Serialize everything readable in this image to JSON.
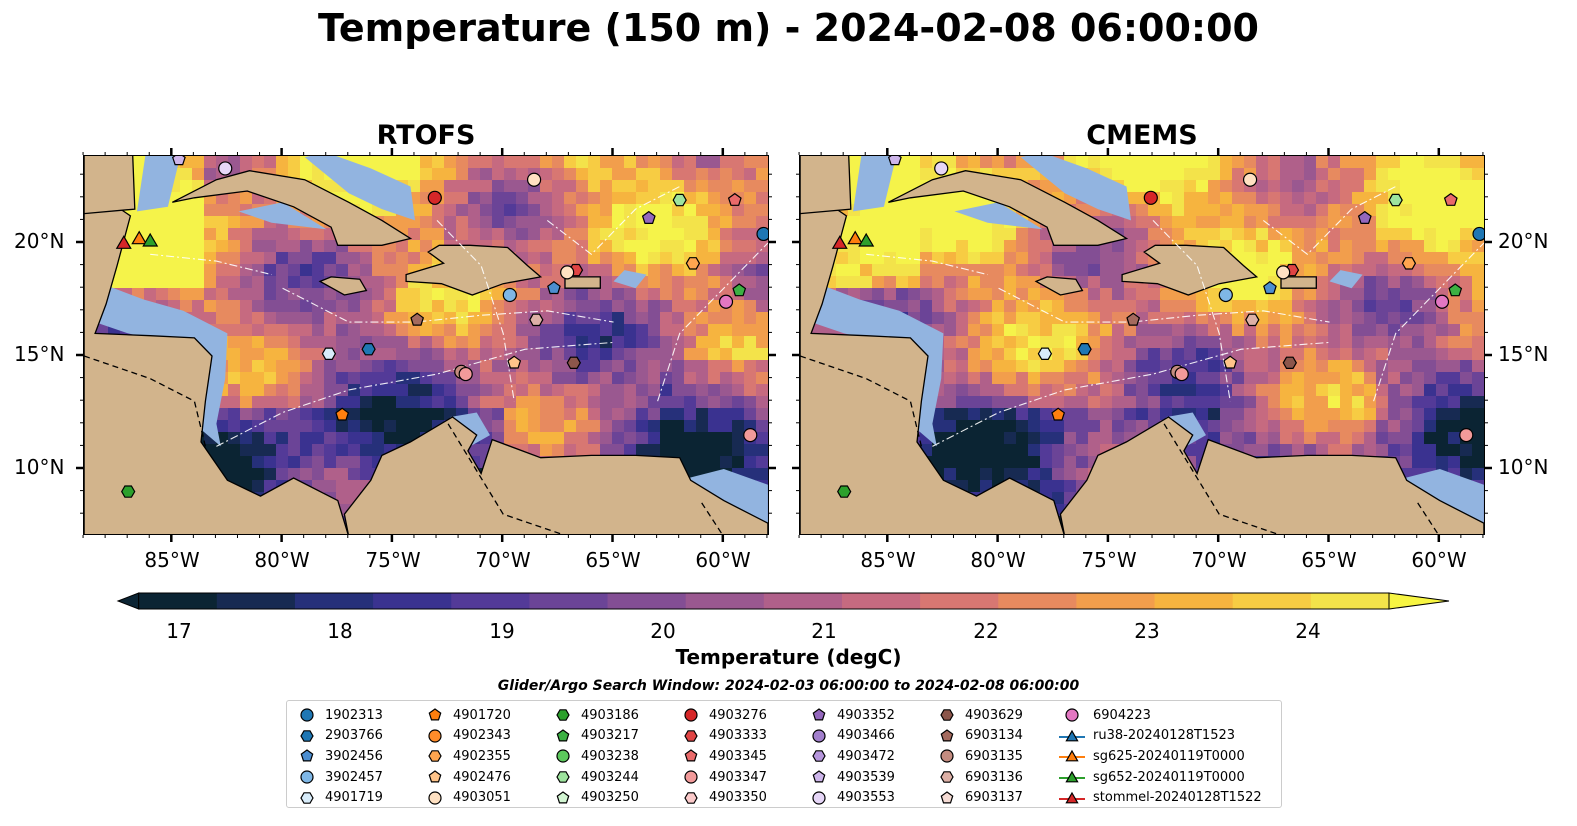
{
  "title": "Temperature (150 m) - 2024-02-08 06:00:00",
  "panels": [
    {
      "title": "RTOFS"
    },
    {
      "title": "CMEMS"
    }
  ],
  "lat_labels": [
    "20°N",
    "15°N",
    "10°N"
  ],
  "lon_labels": [
    "85°W",
    "80°W",
    "75°W",
    "70°W",
    "65°W",
    "60°W"
  ],
  "colorbar": {
    "label": "Temperature (degC)",
    "ticks": [
      "17",
      "18",
      "19",
      "20",
      "21",
      "22",
      "23",
      "24"
    ],
    "min": 16.75,
    "max": 24.5,
    "colors": [
      "#0b2433",
      "#172a52",
      "#26307a",
      "#3a3290",
      "#533a98",
      "#6b4497",
      "#834e94",
      "#9a5890",
      "#b0608a",
      "#c66a80",
      "#d87772",
      "#e78a5f",
      "#f29e4c",
      "#f6b43f",
      "#f7cc43",
      "#f3e34a"
    ]
  },
  "colors": {
    "land": "#d2b48c",
    "shallow": "#92b4e0",
    "deep": "#0b2433"
  },
  "search_window": "Glider/Argo Search Window: 2024-02-03 06:00:00 to 2024-02-08 06:00:00",
  "legend": [
    {
      "label": "1902313",
      "marker": "circle",
      "color": "#1f77b4"
    },
    {
      "label": "2903766",
      "marker": "hexagon",
      "color": "#1f77b4"
    },
    {
      "label": "3902456",
      "marker": "pentagon",
      "color": "#4c8ed0"
    },
    {
      "label": "3902457",
      "marker": "circle",
      "color": "#7fb7e6"
    },
    {
      "label": "4901719",
      "marker": "hexagon",
      "color": "#d8ecfa"
    },
    {
      "label": "4901720",
      "marker": "pentagon",
      "color": "#ff7f0e"
    },
    {
      "label": "4902343",
      "marker": "circle",
      "color": "#ff8c2a"
    },
    {
      "label": "4902355",
      "marker": "hexagon",
      "color": "#ffa54f"
    },
    {
      "label": "4902476",
      "marker": "pentagon",
      "color": "#ffc48a"
    },
    {
      "label": "4903051",
      "marker": "circle",
      "color": "#ffe1c2"
    },
    {
      "label": "4903186",
      "marker": "hexagon",
      "color": "#2ca02c"
    },
    {
      "label": "4903217",
      "marker": "pentagon",
      "color": "#3cb043"
    },
    {
      "label": "4903238",
      "marker": "circle",
      "color": "#5cc85c"
    },
    {
      "label": "4903244",
      "marker": "hexagon",
      "color": "#9ee49e"
    },
    {
      "label": "4903250",
      "marker": "pentagon",
      "color": "#d2f5d2"
    },
    {
      "label": "4903276",
      "marker": "circle",
      "color": "#d62728"
    },
    {
      "label": "4903333",
      "marker": "hexagon",
      "color": "#e04444"
    },
    {
      "label": "4903345",
      "marker": "pentagon",
      "color": "#ea6a6a"
    },
    {
      "label": "4903347",
      "marker": "circle",
      "color": "#f29a9a"
    },
    {
      "label": "4903350",
      "marker": "hexagon",
      "color": "#fbcaca"
    },
    {
      "label": "4903352",
      "marker": "pentagon",
      "color": "#9467bd"
    },
    {
      "label": "4903466",
      "marker": "circle",
      "color": "#a27fcc"
    },
    {
      "label": "4903472",
      "marker": "hexagon",
      "color": "#b696dc"
    },
    {
      "label": "4903539",
      "marker": "pentagon",
      "color": "#cdb5ea"
    },
    {
      "label": "4903553",
      "marker": "circle",
      "color": "#e6d6f7"
    },
    {
      "label": "4903629",
      "marker": "hexagon",
      "color": "#8c564b"
    },
    {
      "label": "6903134",
      "marker": "pentagon",
      "color": "#a46a5e"
    },
    {
      "label": "6903135",
      "marker": "circle",
      "color": "#c48c80"
    },
    {
      "label": "6903136",
      "marker": "hexagon",
      "color": "#ddb0a6"
    },
    {
      "label": "6903137",
      "marker": "pentagon",
      "color": "#f5dbd4"
    },
    {
      "label": "6904223",
      "marker": "circle",
      "color": "#e377c2"
    },
    {
      "label": "ru38-20240128T1523",
      "marker": "line-triangle",
      "color": "#1f77b4"
    },
    {
      "label": "sg625-20240119T0000",
      "marker": "line-triangle",
      "color": "#ff7f0e"
    },
    {
      "label": "sg652-20240119T0000",
      "marker": "line-triangle",
      "color": "#2ca02c"
    },
    {
      "label": "stommel-20240128T1522",
      "marker": "line-triangle",
      "color": "#d62728"
    }
  ]
}
